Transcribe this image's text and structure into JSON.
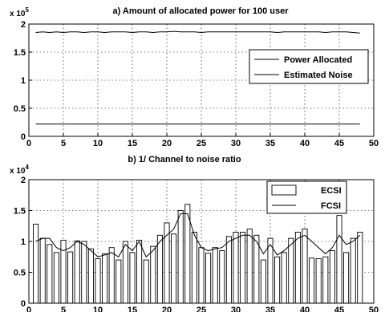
{
  "chart_data": [
    {
      "type": "line",
      "title": "a) Amount of allocated power for 100 user",
      "xlabel": "",
      "ylabel": "",
      "y_multiplier": "x 10",
      "y_multiplier_exp": "5",
      "xlim": [
        0,
        50
      ],
      "ylim": [
        0,
        2
      ],
      "x_ticks": [
        "0",
        "5",
        "10",
        "15",
        "20",
        "25",
        "30",
        "35",
        "40",
        "45",
        "50"
      ],
      "y_ticks": [
        "0",
        "0.5",
        "1",
        "1.5",
        "2"
      ],
      "grid": true,
      "legend_position": "right",
      "x": [
        1,
        2,
        3,
        4,
        5,
        6,
        7,
        8,
        9,
        10,
        11,
        12,
        13,
        14,
        15,
        16,
        17,
        18,
        19,
        20,
        21,
        22,
        23,
        24,
        25,
        26,
        27,
        28,
        29,
        30,
        31,
        32,
        33,
        34,
        35,
        36,
        37,
        38,
        39,
        40,
        41,
        42,
        43,
        44,
        45,
        46,
        47,
        48
      ],
      "series": [
        {
          "name": "Power Allocated",
          "values": [
            1.85,
            1.86,
            1.85,
            1.86,
            1.85,
            1.86,
            1.86,
            1.85,
            1.86,
            1.86,
            1.85,
            1.86,
            1.86,
            1.86,
            1.85,
            1.86,
            1.86,
            1.85,
            1.86,
            1.86,
            1.87,
            1.86,
            1.86,
            1.86,
            1.85,
            1.86,
            1.86,
            1.86,
            1.86,
            1.86,
            1.86,
            1.86,
            1.86,
            1.86,
            1.86,
            1.85,
            1.86,
            1.86,
            1.86,
            1.86,
            1.86,
            1.86,
            1.85,
            1.86,
            1.86,
            1.86,
            1.85,
            1.84
          ]
        },
        {
          "name": "Estimated Noise",
          "values": [
            0.22,
            0.22,
            0.22,
            0.22,
            0.22,
            0.22,
            0.22,
            0.22,
            0.22,
            0.22,
            0.22,
            0.22,
            0.22,
            0.22,
            0.22,
            0.22,
            0.22,
            0.22,
            0.22,
            0.22,
            0.22,
            0.22,
            0.22,
            0.22,
            0.22,
            0.22,
            0.22,
            0.22,
            0.22,
            0.22,
            0.22,
            0.22,
            0.22,
            0.22,
            0.22,
            0.22,
            0.22,
            0.22,
            0.22,
            0.22,
            0.22,
            0.22,
            0.22,
            0.22,
            0.22,
            0.22,
            0.22,
            0.22
          ]
        }
      ]
    },
    {
      "type": "bar",
      "title": "b) 1/ Channel to noise ratio",
      "xlabel": "",
      "ylabel": "",
      "y_multiplier": "x 10",
      "y_multiplier_exp": "4",
      "xlim": [
        0,
        50
      ],
      "ylim": [
        0,
        2
      ],
      "x_ticks": [
        "0",
        "5",
        "10",
        "15",
        "20",
        "25",
        "30",
        "35",
        "40",
        "45",
        "50"
      ],
      "y_ticks": [
        "0",
        "0.5",
        "1",
        "1.5",
        "2"
      ],
      "grid": true,
      "legend_position": "top-right",
      "x": [
        1,
        2,
        3,
        4,
        5,
        6,
        7,
        8,
        9,
        10,
        11,
        12,
        13,
        14,
        15,
        16,
        17,
        18,
        19,
        20,
        21,
        22,
        23,
        24,
        25,
        26,
        27,
        28,
        29,
        30,
        31,
        32,
        33,
        34,
        35,
        36,
        37,
        38,
        39,
        40,
        41,
        42,
        43,
        44,
        45,
        46,
        47,
        48
      ],
      "series": [
        {
          "name": "ECSI",
          "kind": "bar",
          "values": [
            1.28,
            1.05,
            0.95,
            0.82,
            1.02,
            0.83,
            1.01,
            1.0,
            0.88,
            0.72,
            0.8,
            0.9,
            0.7,
            1.0,
            0.82,
            1.02,
            0.7,
            0.92,
            1.1,
            1.3,
            1.12,
            1.5,
            1.6,
            1.15,
            0.9,
            0.81,
            0.9,
            0.85,
            1.08,
            1.15,
            1.15,
            1.2,
            1.1,
            0.7,
            1.05,
            0.75,
            0.82,
            1.05,
            1.15,
            1.2,
            0.73,
            0.72,
            0.75,
            0.85,
            1.42,
            0.82,
            1.05,
            1.15
          ]
        },
        {
          "name": "FCSI",
          "kind": "line",
          "values": [
            1.0,
            1.05,
            1.05,
            0.9,
            0.85,
            0.9,
            1.0,
            0.95,
            0.85,
            0.75,
            0.78,
            0.82,
            0.75,
            0.95,
            0.85,
            1.0,
            0.75,
            0.85,
            1.0,
            1.1,
            1.2,
            1.45,
            1.45,
            1.1,
            0.9,
            0.85,
            0.88,
            0.9,
            1.0,
            1.05,
            1.1,
            1.1,
            1.0,
            0.8,
            0.95,
            0.78,
            0.85,
            0.95,
            1.05,
            1.1,
            1.0,
            0.9,
            0.8,
            0.9,
            1.1,
            0.95,
            1.0,
            1.1
          ]
        }
      ]
    }
  ]
}
